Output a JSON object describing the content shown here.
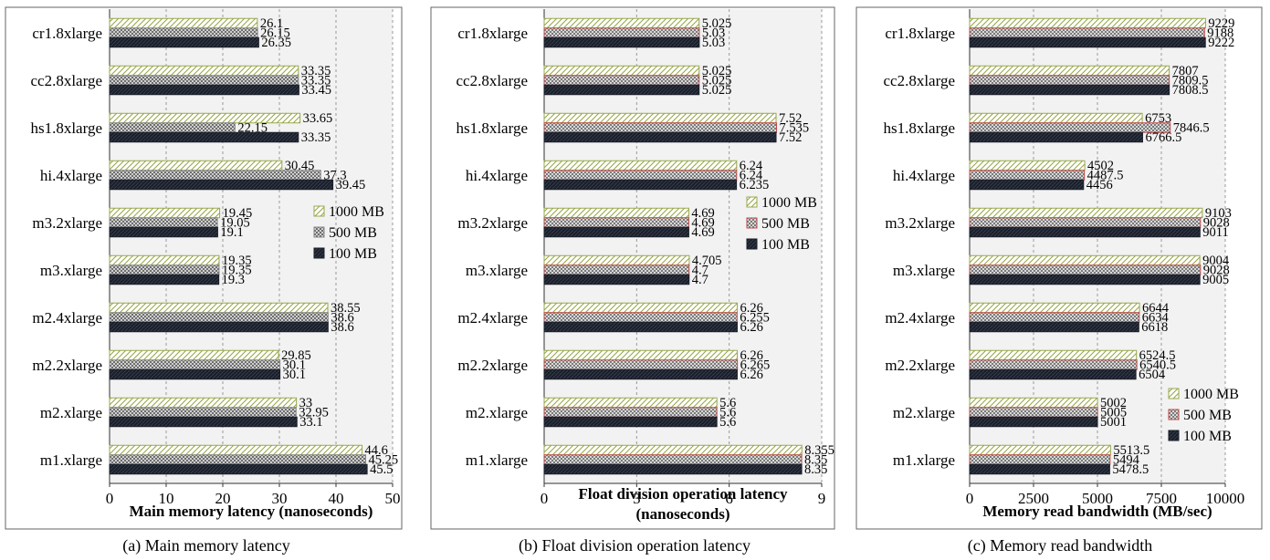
{
  "chart_data": [
    {
      "type": "bar",
      "orientation": "horizontal",
      "categories": [
        "cr1.8xlarge",
        "cc2.8xlarge",
        "hs1.8xlarge",
        "hi.4xlarge",
        "m3.2xlarge",
        "m3.xlarge",
        "m2.4xlarge",
        "m2.2xlarge",
        "m2.xlarge",
        "m1.xlarge"
      ],
      "series": [
        {
          "name": "1000 MB",
          "values": [
            26.1,
            33.35,
            33.65,
            30.45,
            19.45,
            19.35,
            38.55,
            29.85,
            33,
            44.6
          ]
        },
        {
          "name": "500 MB",
          "values": [
            26.15,
            33.35,
            22.15,
            37.3,
            19.05,
            19.35,
            38.6,
            30.1,
            32.95,
            45.25
          ]
        },
        {
          "name": "100 MB",
          "values": [
            26.35,
            33.45,
            33.35,
            39.45,
            19.1,
            19.3,
            38.6,
            30.1,
            33.1,
            45.5
          ]
        }
      ],
      "value_labels": [
        [
          "26.1",
          "33.35",
          "33.65",
          "30.45",
          "19.45",
          "19.35",
          "38.55",
          "29.85",
          "33",
          "44.6"
        ],
        [
          "26.15",
          "33.35",
          "22.15",
          "37.3",
          "19.05",
          "19.35",
          "38.6",
          "30.1",
          "32.95",
          "45.25"
        ],
        [
          "26.35",
          "33.45",
          "33.35",
          "39.45",
          "19.1",
          "19.3",
          "38.6",
          "30.1",
          "33.1",
          "45.5"
        ]
      ],
      "xlim": [
        0,
        50
      ],
      "ticks": [
        0,
        10,
        20,
        30,
        40,
        50
      ],
      "tick_labels": [
        "0",
        "10",
        "20",
        "30",
        "40",
        "50"
      ],
      "xlabel": [
        "Main memory latency (nanoseconds)"
      ],
      "grid": true,
      "legend": "right-middle",
      "caption": "(a) Main memory latency"
    },
    {
      "type": "bar",
      "orientation": "horizontal",
      "categories": [
        "cr1.8xlarge",
        "cc2.8xlarge",
        "hs1.8xlarge",
        "hi.4xlarge",
        "m3.2xlarge",
        "m3.xlarge",
        "m2.4xlarge",
        "m2.2xlarge",
        "m2.xlarge",
        "m1.xlarge"
      ],
      "series": [
        {
          "name": "1000 MB",
          "values": [
            5.025,
            5.025,
            7.52,
            6.24,
            4.69,
            4.705,
            6.26,
            6.26,
            5.6,
            8.355
          ]
        },
        {
          "name": "500 MB",
          "values": [
            5.03,
            5.025,
            7.535,
            6.24,
            4.69,
            4.7,
            6.255,
            6.265,
            5.6,
            8.35
          ]
        },
        {
          "name": "100 MB",
          "values": [
            5.03,
            5.025,
            7.52,
            6.235,
            4.69,
            4.7,
            6.26,
            6.26,
            5.6,
            8.35
          ]
        }
      ],
      "value_labels": [
        [
          "5.025",
          "5.025",
          "7.52",
          "6.24",
          "4.69",
          "4.705",
          "6.26",
          "6.26",
          "5.6",
          "8.355"
        ],
        [
          "5.03",
          "5.025",
          "7.535",
          "6.24",
          "4.69",
          "4.7",
          "6.255",
          "6.265",
          "5.6",
          "8.35"
        ],
        [
          "5.03",
          "5.025",
          "7.52",
          "6.235",
          "4.69",
          "4.7",
          "6.26",
          "6.26",
          "5.6",
          "8.35"
        ]
      ],
      "xlim": [
        0,
        9
      ],
      "ticks": [
        0,
        3,
        6,
        9
      ],
      "tick_labels": [
        "0",
        "3",
        "6",
        "9"
      ],
      "xlabel": [
        "Float division operation latency",
        "(nanoseconds)"
      ],
      "grid": true,
      "legend": "right-middle",
      "caption": "(b) Float division operation latency"
    },
    {
      "type": "bar",
      "orientation": "horizontal",
      "categories": [
        "cr1.8xlarge",
        "cc2.8xlarge",
        "hs1.8xlarge",
        "hi.4xlarge",
        "m3.2xlarge",
        "m3.xlarge",
        "m2.4xlarge",
        "m2.2xlarge",
        "m2.xlarge",
        "m1.xlarge"
      ],
      "series": [
        {
          "name": "1000 MB",
          "values": [
            9229,
            7807,
            6753,
            4502,
            9103,
            9004,
            6644,
            6524.5,
            5002,
            5513.5
          ]
        },
        {
          "name": "500 MB",
          "values": [
            9188,
            7809.5,
            7846.5,
            4487.5,
            9028,
            9028,
            6634,
            6540.5,
            5005,
            5494
          ]
        },
        {
          "name": "100 MB",
          "values": [
            9222,
            7808.5,
            6766.5,
            4456,
            9011,
            9005,
            6618,
            6504,
            5001,
            5478.5
          ]
        }
      ],
      "value_labels": [
        [
          "9229",
          "7807",
          "6753",
          "4502",
          "9103",
          "9004",
          "6644",
          "6524.5",
          "5002",
          "5513.5"
        ],
        [
          "9188",
          "7809.5",
          "7846.5",
          "4487.5",
          "9028",
          "9028",
          "6634",
          "6540.5",
          "5005",
          "5494"
        ],
        [
          "9222",
          "7808.5",
          "6766.5",
          "4456",
          "9011",
          "9005",
          "6618",
          "6504",
          "5001",
          "5478.5"
        ]
      ],
      "xlim": [
        0,
        10000
      ],
      "ticks": [
        0,
        2500,
        5000,
        7500,
        10000
      ],
      "tick_labels": [
        "0",
        "2500",
        "5000",
        "7500",
        "10000"
      ],
      "xlabel": [
        "Memory read bandwidth (MB/sec)"
      ],
      "grid": true,
      "legend": "bottom-right",
      "caption": "(c) Memory read bandwidth"
    }
  ]
}
